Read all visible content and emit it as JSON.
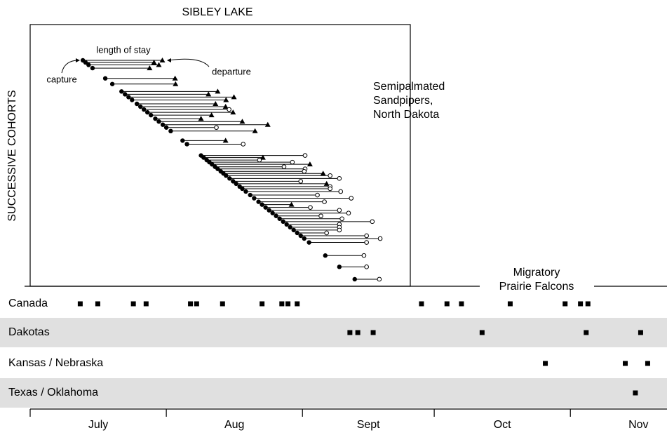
{
  "chart_data": {
    "type": "timeline",
    "title": "SIBLEY LAKE",
    "y_label": "SUCCESSIVE COHORTS",
    "annotations": {
      "length": "length of stay",
      "capture": "capture",
      "departure": "departure"
    },
    "species_label": [
      "Semipalmated",
      "Sandpipers,",
      "North Dakota"
    ],
    "falcon_label": [
      "Migratory",
      "Prairie Falcons"
    ],
    "months": [
      "July",
      "Aug",
      "Sept",
      "Oct",
      "Nov"
    ],
    "xlim": [
      0,
      145
    ],
    "xticks": [
      0,
      31,
      62,
      92,
      123
    ],
    "cohorts": {
      "capture": [
        12.0,
        12.6,
        13.3,
        14.2,
        17.1,
        18.7,
        20.8,
        21.6,
        22.4,
        23.2,
        24.3,
        25.1,
        25.9,
        26.7,
        27.5,
        28.5,
        29.3,
        30.2,
        31.0,
        32.0,
        34.7,
        35.7,
        38.9,
        39.5,
        40.2,
        40.8,
        41.4,
        42.1,
        42.7,
        43.4,
        44.0,
        44.6,
        45.4,
        46.2,
        46.9,
        47.7,
        48.3,
        49.1,
        50.1,
        51.0,
        52.0,
        52.8,
        53.6,
        54.4,
        55.2,
        56.0,
        56.8,
        57.6,
        58.4,
        59.2,
        60.0,
        60.8,
        61.6,
        62.4,
        63.5,
        67.2,
        70.4,
        73.9
      ],
      "departure": [
        30.1,
        28.2,
        29.3,
        27.2,
        33.0,
        33.1,
        42.7,
        40.6,
        46.4,
        44.6,
        42.2,
        44.5,
        45.3,
        46.2,
        41.3,
        38.9,
        48.3,
        54.1,
        42.4,
        51.2,
        44.5,
        48.5,
        62.6,
        53.0,
        52.2,
        59.7,
        63.7,
        57.8,
        62.6,
        62.4,
        66.7,
        68.3,
        70.4,
        61.6,
        67.5,
        68.3,
        68.3,
        70.7,
        65.4,
        73.1,
        67.0,
        59.5,
        63.8,
        70.4,
        72.5,
        66.2,
        71.0,
        77.9,
        70.4,
        70.4,
        70.4,
        67.5,
        76.6,
        79.7,
        76.6,
        76.0,
        76.6,
        79.5
      ],
      "departure_marker": [
        "triangle",
        "triangle",
        "triangle",
        "triangle",
        "triangle",
        "triangle",
        "triangle",
        "triangle",
        "triangle",
        "triangle",
        "triangle",
        "triangle",
        "circle",
        "triangle",
        "triangle",
        "triangle",
        "triangle",
        "triangle",
        "circle",
        "triangle",
        "triangle",
        "circle",
        "circle",
        "triangle",
        "circle",
        "circle",
        "triangle",
        "circle",
        "circle",
        "circle",
        "triangle",
        "circle",
        "circle",
        "circle",
        "triangle",
        "circle",
        "circle",
        "circle",
        "circle",
        "circle",
        "circle",
        "triangle",
        "circle",
        "circle",
        "circle",
        "circle",
        "circle",
        "circle",
        "circle",
        "circle",
        "circle",
        "circle",
        "circle",
        "circle",
        "circle",
        "circle",
        "circle",
        "circle"
      ]
    },
    "falcons": [
      {
        "name": "Canada",
        "shaded": false,
        "values": [
          11.4,
          15.4,
          23.5,
          26.4,
          36.5,
          37.9,
          43.8,
          52.8,
          57.3,
          58.7,
          60.8,
          89.1,
          94.9,
          98.2,
          109.3,
          121.8,
          125.3,
          127.0
        ]
      },
      {
        "name": "Dakotas",
        "shaded": true,
        "values": [
          72.8,
          74.6,
          78.1,
          102.9,
          126.6,
          139.0
        ]
      },
      {
        "name": "Kansas / Nebraska",
        "shaded": false,
        "values": [
          117.3,
          135.5,
          140.6
        ]
      },
      {
        "name": "Texas / Oklahoma",
        "shaded": true,
        "values": [
          137.8
        ]
      }
    ]
  }
}
